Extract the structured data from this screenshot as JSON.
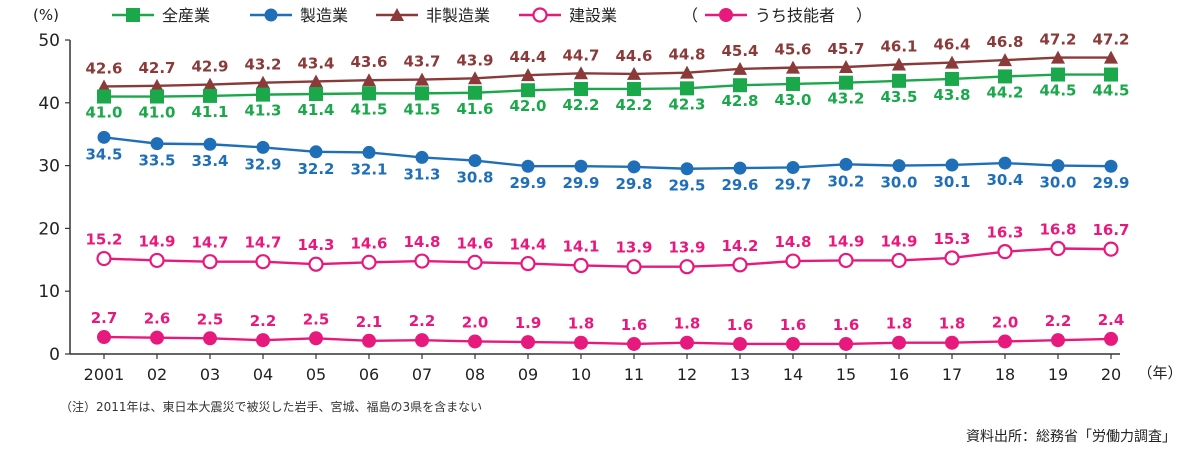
{
  "chart_data": {
    "type": "line",
    "title": "",
    "ylabel": "(%)",
    "xlabel": "（年）",
    "ylim": [
      0,
      50
    ],
    "yticks": [
      "0",
      "10",
      "20",
      "30",
      "40",
      "50"
    ],
    "categories": [
      "2001",
      "02",
      "03",
      "04",
      "05",
      "06",
      "07",
      "08",
      "09",
      "10",
      "11",
      "12",
      "13",
      "14",
      "15",
      "16",
      "17",
      "18",
      "19",
      "20"
    ],
    "legend_placement": "top",
    "series": [
      {
        "name": "全産業",
        "marker": "square",
        "color": "#1aa84a",
        "values": [
          41.0,
          41.0,
          41.1,
          41.3,
          41.4,
          41.5,
          41.5,
          41.6,
          42.0,
          42.2,
          42.2,
          42.3,
          42.8,
          43.0,
          43.2,
          43.5,
          43.8,
          44.2,
          44.5,
          44.5
        ]
      },
      {
        "name": "製造業",
        "marker": "circle",
        "color": "#1f6fb8",
        "values": [
          34.5,
          33.5,
          33.4,
          32.9,
          32.2,
          32.1,
          31.3,
          30.8,
          29.9,
          29.9,
          29.8,
          29.5,
          29.6,
          29.7,
          30.2,
          30.0,
          30.1,
          30.4,
          30.0,
          29.9
        ]
      },
      {
        "name": "非製造業",
        "marker": "triangle",
        "color": "#8b3a3a",
        "values": [
          42.6,
          42.7,
          42.9,
          43.2,
          43.4,
          43.6,
          43.7,
          43.9,
          44.4,
          44.7,
          44.6,
          44.8,
          45.4,
          45.6,
          45.7,
          46.1,
          46.4,
          46.8,
          47.2,
          47.2
        ]
      },
      {
        "name": "建設業",
        "marker": "open-circle",
        "color": "#e8197d",
        "values": [
          15.2,
          14.9,
          14.7,
          14.7,
          14.3,
          14.6,
          14.8,
          14.6,
          14.4,
          14.1,
          13.9,
          13.9,
          14.2,
          14.8,
          14.9,
          14.9,
          15.3,
          16.3,
          16.8,
          16.7
        ]
      },
      {
        "name": "うち技能者",
        "marker": "filled-circle",
        "color": "#e8197d",
        "values": [
          2.7,
          2.6,
          2.5,
          2.2,
          2.5,
          2.1,
          2.2,
          2.0,
          1.9,
          1.8,
          1.6,
          1.8,
          1.6,
          1.6,
          1.6,
          1.8,
          1.8,
          2.0,
          2.2,
          2.4
        ]
      }
    ],
    "legend_brackets": [
      "（",
      "）"
    ]
  },
  "note": "（注）2011年は、東日本大震災で被災した岩手、宮城、福島の3県を含まない",
  "source": "資料出所：総務省「労働力調査」"
}
